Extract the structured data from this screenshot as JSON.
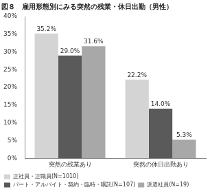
{
  "chart_data": {
    "type": "bar",
    "title": "図８　雇用形態別にみる突然の残業・休日出勤（男性）",
    "categories": [
      "突然の残業あり",
      "突然の休日出勤あり"
    ],
    "series": [
      {
        "name": "正社員・正職員(N=1010)",
        "color": "#d4d4d4",
        "values": [
          35.2,
          22.2
        ],
        "value_labels": [
          "35.2%",
          "22.2%"
        ]
      },
      {
        "name": "パート・アルバイト・契約・臨時・嘱託(N=107)",
        "color": "#5a5a5a",
        "values": [
          29.0,
          14.0
        ],
        "value_labels": [
          "29.0%",
          "14.0%"
        ]
      },
      {
        "name": "派遣社員(N=19)",
        "color": "#a8a8a8",
        "values": [
          31.6,
          5.3
        ],
        "value_labels": [
          "31.6%",
          "5.3%"
        ]
      }
    ],
    "ylim": [
      0,
      40
    ],
    "yticks": [
      {
        "value": 0,
        "label": "0%"
      },
      {
        "value": 5,
        "label": "5%"
      },
      {
        "value": 10,
        "label": "10%"
      },
      {
        "value": 15,
        "label": "15%"
      },
      {
        "value": 20,
        "label": "20%"
      },
      {
        "value": 25,
        "label": "25%"
      },
      {
        "value": 30,
        "label": "30%"
      },
      {
        "value": 35,
        "label": "35%"
      },
      {
        "value": 40,
        "label": "40%"
      }
    ],
    "grid": false,
    "legend": "bottom",
    "data_labels": true
  }
}
